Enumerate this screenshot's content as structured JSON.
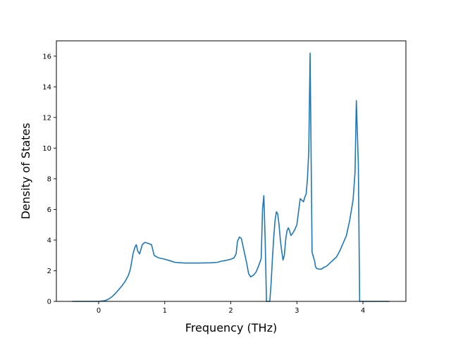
{
  "chart_data": {
    "type": "line",
    "title": "",
    "xlabel": "Frequency (THz)",
    "ylabel": "Density of States",
    "xlim": [
      -0.64,
      4.65
    ],
    "ylim": [
      0,
      17
    ],
    "xticks": [
      0,
      1,
      2,
      3,
      4
    ],
    "yticks": [
      0,
      2,
      4,
      6,
      8,
      10,
      12,
      14,
      16
    ],
    "grid": false,
    "legend": "none",
    "colors": {
      "line": "#1f77b4",
      "axes": "#000000"
    },
    "series": [
      {
        "x": [
          -0.4,
          -0.2,
          0.0,
          0.1,
          0.15,
          0.2,
          0.25,
          0.3,
          0.35,
          0.4,
          0.45,
          0.48,
          0.5,
          0.52,
          0.55,
          0.57,
          0.59,
          0.62,
          0.64,
          0.66,
          0.7,
          0.74,
          0.8,
          0.84,
          0.9,
          1.0,
          1.08,
          1.15,
          1.3,
          1.5,
          1.7,
          1.8,
          1.85,
          1.9,
          1.95,
          2.0,
          2.05,
          2.08,
          2.1,
          2.13,
          2.16,
          2.2,
          2.24,
          2.27,
          2.3,
          2.34,
          2.38,
          2.42,
          2.46,
          2.48,
          2.5,
          2.52,
          2.54,
          2.56,
          2.59,
          2.61,
          2.63,
          2.65,
          2.67,
          2.69,
          2.71,
          2.73,
          2.75,
          2.77,
          2.79,
          2.81,
          2.83,
          2.85,
          2.87,
          2.89,
          2.91,
          2.93,
          2.95,
          2.97,
          3.0,
          3.05,
          3.1,
          3.12,
          3.14,
          3.16,
          3.18,
          3.2,
          3.23,
          3.25,
          3.27,
          3.28,
          3.29,
          3.3,
          3.32,
          3.35,
          3.38,
          3.4,
          3.45,
          3.5,
          3.55,
          3.6,
          3.65,
          3.7,
          3.75,
          3.8,
          3.85,
          3.88,
          3.9,
          3.93,
          3.95,
          3.98,
          4.0,
          4.01,
          4.02,
          4.03,
          4.05,
          4.1,
          4.2,
          4.3,
          4.4
        ],
        "y": [
          0,
          0,
          0,
          0.05,
          0.15,
          0.3,
          0.5,
          0.75,
          1.0,
          1.3,
          1.7,
          2.1,
          2.6,
          3.1,
          3.55,
          3.7,
          3.3,
          3.1,
          3.4,
          3.7,
          3.85,
          3.8,
          3.7,
          3.0,
          2.85,
          2.75,
          2.65,
          2.55,
          2.5,
          2.5,
          2.52,
          2.55,
          2.62,
          2.65,
          2.7,
          2.75,
          2.85,
          3.1,
          3.9,
          4.2,
          4.1,
          3.3,
          2.5,
          1.8,
          1.6,
          1.7,
          1.9,
          2.3,
          2.8,
          6.0,
          6.9,
          4.0,
          0,
          0,
          0,
          1.2,
          2.8,
          4.2,
          5.3,
          5.85,
          5.7,
          5.0,
          4.0,
          3.3,
          2.7,
          3.0,
          4.0,
          4.6,
          4.8,
          4.6,
          4.3,
          4.4,
          4.55,
          4.7,
          5.0,
          6.7,
          6.5,
          6.8,
          7.0,
          8.0,
          9.8,
          16.2,
          3.2,
          2.9,
          2.6,
          2.3,
          2.2,
          2.15,
          2.12,
          2.1,
          2.12,
          2.2,
          2.3,
          2.5,
          2.7,
          2.9,
          3.3,
          3.8,
          4.3,
          5.3,
          6.6,
          8.4,
          13.1,
          9.0,
          0,
          0,
          0,
          0,
          0,
          0,
          0,
          0,
          0,
          0,
          0
        ]
      }
    ]
  }
}
